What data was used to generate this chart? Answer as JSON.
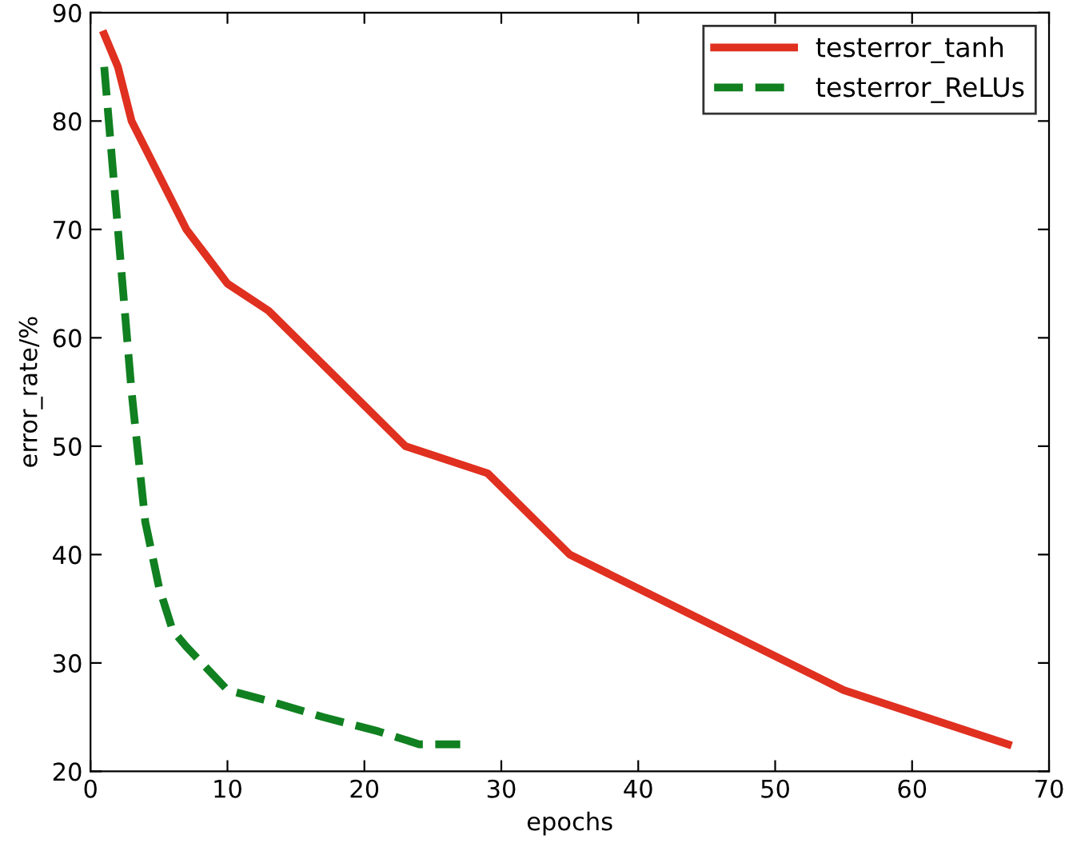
{
  "chart_data": {
    "type": "line",
    "xlabel": "epochs",
    "ylabel": "error_rate/%",
    "xlim": [
      0,
      70
    ],
    "ylim": [
      20,
      90
    ],
    "xticks": [
      0,
      10,
      20,
      30,
      40,
      50,
      60,
      70
    ],
    "yticks": [
      20,
      30,
      40,
      50,
      60,
      70,
      80,
      90
    ],
    "grid": false,
    "legend": "top right",
    "marker": "none",
    "series": [
      {
        "name": "testerror_tanh",
        "color": "#e03020",
        "line_style": "solid",
        "x": [
          1,
          2,
          3,
          7,
          10,
          13,
          23,
          29,
          35,
          55,
          67
        ],
        "values": [
          88,
          85,
          80,
          70,
          65,
          62.5,
          50,
          47.5,
          40,
          27.5,
          22.5
        ]
      },
      {
        "name": "testerror_ReLUs",
        "color": "#108020",
        "line_style": "dashed",
        "x": [
          1,
          2,
          3,
          4,
          5,
          6,
          7,
          10,
          13,
          17,
          21,
          24,
          27
        ],
        "values": [
          85,
          70,
          55,
          43,
          37,
          33,
          31.5,
          27.5,
          26.5,
          25,
          23.7,
          22.5,
          22.5
        ]
      }
    ]
  }
}
